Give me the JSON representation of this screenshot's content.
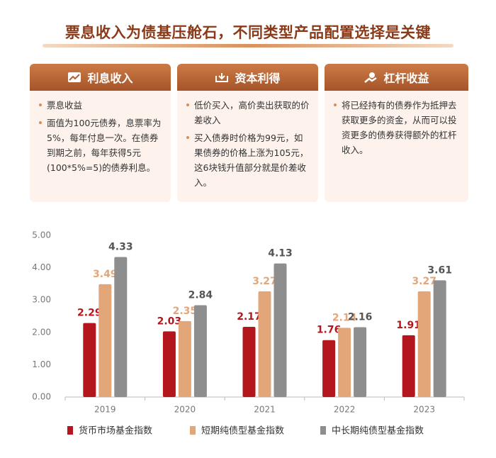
{
  "header": {
    "title": "票息收入为债基压舱石，不同类型产品配置选择是关键"
  },
  "cards": [
    {
      "title": "利息收入",
      "items": [
        "票息收益",
        "面值为100元债券，息票率为5%，每年付息一次。在债券到期之前，每年获得5元(100*5%=5)的债券利息。"
      ]
    },
    {
      "title": "资本利得",
      "items": [
        "低价买入，高价卖出获取的价差收入",
        "买入债券时价格为99元，如果债券的价格上涨为105元，这6块钱升值部分就是价差收入。"
      ]
    },
    {
      "title": "杠杆收益",
      "items": [
        "将已经持有的债券作为抵押去获取更多的资金，从而可以投资更多的债券获得额外的杠杆收入。"
      ]
    }
  ],
  "chart_data": {
    "type": "bar",
    "categories": [
      "2019",
      "2020",
      "2021",
      "2022",
      "2023"
    ],
    "series": [
      {
        "name": "货币市场基金指数",
        "color": "#b3171d",
        "values": [
          2.29,
          2.03,
          2.17,
          1.76,
          1.91
        ]
      },
      {
        "name": "短期纯债型基金指数",
        "color": "#e3a679",
        "values": [
          3.49,
          2.35,
          3.27,
          2.14,
          3.27
        ]
      },
      {
        "name": "中长期纯债型基金指数",
        "color": "#8e8e8e",
        "values": [
          4.33,
          2.84,
          4.13,
          2.16,
          3.61
        ]
      }
    ],
    "ylim": [
      0,
      5
    ],
    "yticks": [
      {
        "value": 0,
        "label": "0.00"
      },
      {
        "value": 1,
        "label": "1.00"
      },
      {
        "value": 2,
        "label": "2.00"
      },
      {
        "value": 3,
        "label": "3.00"
      },
      {
        "value": 4,
        "label": "4.00"
      },
      {
        "value": 5,
        "label": "5.00"
      }
    ]
  }
}
